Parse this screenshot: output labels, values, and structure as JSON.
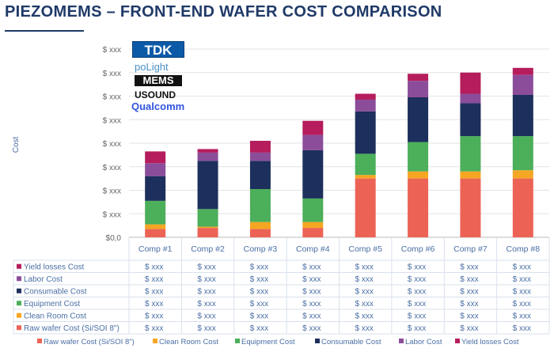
{
  "title": "PIEZOMEMS – FRONT-END WAFER COST COMPARISON",
  "logos": [
    "TDK",
    "poLight",
    "MEMS",
    "USOUND",
    "Qualcomm"
  ],
  "chart_data": {
    "type": "bar",
    "stacked": true,
    "ylabel": "Cost",
    "ylim": [
      0,
      8
    ],
    "y_tick_labels": [
      "$0,0",
      "$ xxx",
      "$ xxx",
      "$ xxx",
      "$ xxx",
      "$ xxx",
      "$ xxx",
      "$ xxx",
      "$ xxx"
    ],
    "categories": [
      "Comp #1",
      "Comp #2",
      "Comp #3",
      "Comp #4",
      "Comp #5",
      "Comp #6",
      "Comp #7",
      "Comp #8"
    ],
    "series": [
      {
        "name": "Raw wafer Cost (Si/SOI 8\")",
        "color": "#ec6356",
        "values": [
          0.35,
          0.4,
          0.35,
          0.4,
          2.5,
          2.5,
          2.5,
          2.5
        ]
      },
      {
        "name": "Clean Room Cost",
        "color": "#f5a623",
        "values": [
          0.2,
          0.05,
          0.3,
          0.25,
          0.15,
          0.3,
          0.3,
          0.35
        ]
      },
      {
        "name": "Equipment Cost",
        "color": "#4caf5a",
        "values": [
          1.0,
          0.75,
          1.4,
          1.0,
          0.9,
          1.25,
          1.5,
          1.45
        ]
      },
      {
        "name": "Consumable Cost",
        "color": "#1d2f5c",
        "values": [
          1.05,
          2.05,
          1.2,
          2.05,
          1.8,
          1.9,
          1.4,
          1.75
        ]
      },
      {
        "name": "Labor Cost",
        "color": "#8b4d9a",
        "values": [
          0.55,
          0.35,
          0.35,
          0.65,
          0.5,
          0.7,
          0.4,
          0.85
        ]
      },
      {
        "name": "Yield losses Cost",
        "color": "#b51d5c",
        "values": [
          0.5,
          0.15,
          0.5,
          0.6,
          0.25,
          0.3,
          0.9,
          0.3
        ]
      }
    ],
    "table": {
      "row_labels": [
        "Yield losses Cost",
        "Labor Cost",
        "Consumable Cost",
        "Equipment Cost",
        "Clean Room Cost",
        "Raw wafer Cost (Si/SOI 8\")"
      ],
      "cell_value": "$ xxx"
    },
    "legend": {
      "position": "bottom",
      "items": [
        "Raw wafer Cost (Si/SOI 8\")",
        "Clean Room Cost",
        "Equipment Cost",
        "Consumable Cost",
        "Labor Cost",
        "Yield losses Cost"
      ]
    }
  }
}
